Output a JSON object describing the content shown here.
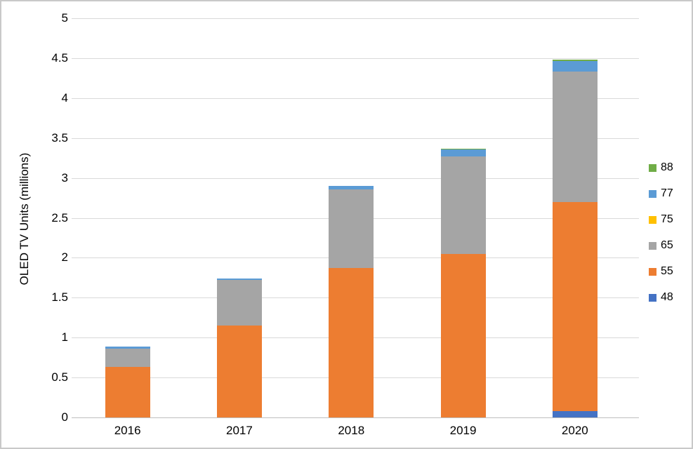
{
  "colors": {
    "background": "#FFFFFF",
    "border": "#C9C9C9",
    "gridline": "#D9D9D9",
    "axis_line": "#BFBFBF",
    "text": "#000000"
  },
  "chart_data": {
    "type": "bar",
    "stacked": true,
    "title": "",
    "xlabel": "",
    "ylabel": "OLED TV Units (millions)",
    "ylim": [
      0,
      5
    ],
    "ytick_step": 0.5,
    "ytick_labels": [
      "0",
      "0.5",
      "1",
      "1.5",
      "2",
      "2.5",
      "3",
      "3.5",
      "4",
      "4.5",
      "5"
    ],
    "grid": true,
    "categories": [
      "2016",
      "2017",
      "2018",
      "2019",
      "2020"
    ],
    "series": [
      {
        "name": "48",
        "color": "#4472C4",
        "values": [
          0,
          0,
          0,
          0,
          0.08
        ]
      },
      {
        "name": "55",
        "color": "#ED7D31",
        "values": [
          0.63,
          1.15,
          1.87,
          2.05,
          2.62
        ]
      },
      {
        "name": "65",
        "color": "#A5A5A5",
        "values": [
          0.23,
          0.57,
          0.99,
          1.22,
          1.63
        ]
      },
      {
        "name": "75",
        "color": "#FFC000",
        "values": [
          0,
          0,
          0,
          0,
          0
        ]
      },
      {
        "name": "77",
        "color": "#5B9BD5",
        "values": [
          0.03,
          0.02,
          0.04,
          0.09,
          0.13
        ]
      },
      {
        "name": "88",
        "color": "#70AD47",
        "values": [
          0,
          0,
          0,
          0.01,
          0.02
        ]
      }
    ],
    "totals": [
      0.89,
      1.74,
      2.9,
      3.37,
      4.48
    ],
    "legend": {
      "position": "right",
      "order_top_to_bottom": [
        "88",
        "77",
        "75",
        "65",
        "55",
        "48"
      ]
    }
  }
}
